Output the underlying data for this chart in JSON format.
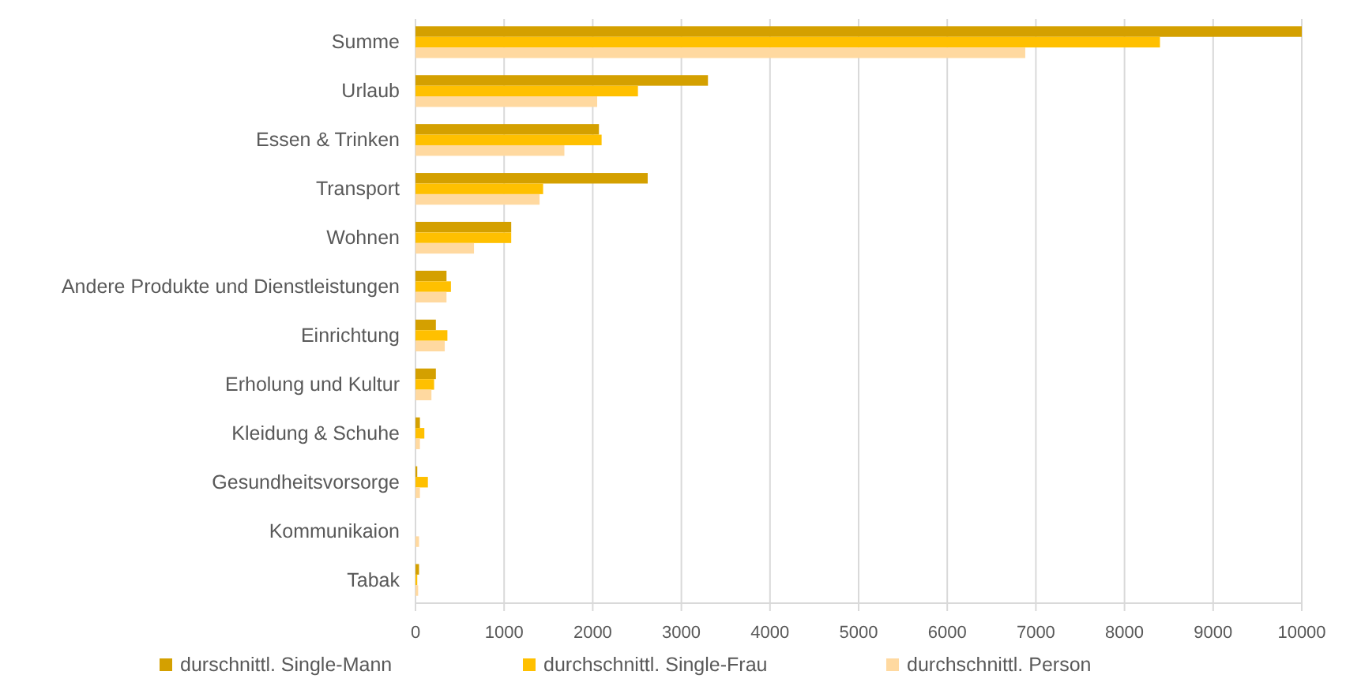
{
  "chart_data": {
    "type": "bar",
    "orientation": "horizontal",
    "categories": [
      "Summe",
      "Urlaub",
      "Essen & Trinken",
      "Transport",
      "Wohnen",
      "Andere Produkte und Dienstleistungen",
      "Einrichtung",
      "Erholung und Kultur",
      "Kleidung & Schuhe",
      "Gesundheitsvorsorge",
      "Kommunikaion",
      "Tabak"
    ],
    "series": [
      {
        "name": "durschnittl. Single-Mann",
        "color": "#d4a000",
        "values": [
          10000,
          3300,
          2070,
          2620,
          1080,
          350,
          230,
          230,
          50,
          20,
          0,
          40
        ]
      },
      {
        "name": "durchschnittl. Single-Frau",
        "color": "#ffc000",
        "values": [
          8400,
          2510,
          2100,
          1440,
          1080,
          400,
          360,
          210,
          100,
          140,
          0,
          20
        ]
      },
      {
        "name": "durchschnittl. Person",
        "color": "#ffd9a0",
        "values": [
          6880,
          2050,
          1680,
          1400,
          660,
          350,
          330,
          180,
          50,
          50,
          40,
          30
        ]
      }
    ],
    "xlim": [
      0,
      10000
    ],
    "xticks": [
      0,
      1000,
      2000,
      3000,
      4000,
      5000,
      6000,
      7000,
      8000,
      9000,
      10000
    ],
    "grid": "x",
    "legend": "bottom"
  }
}
